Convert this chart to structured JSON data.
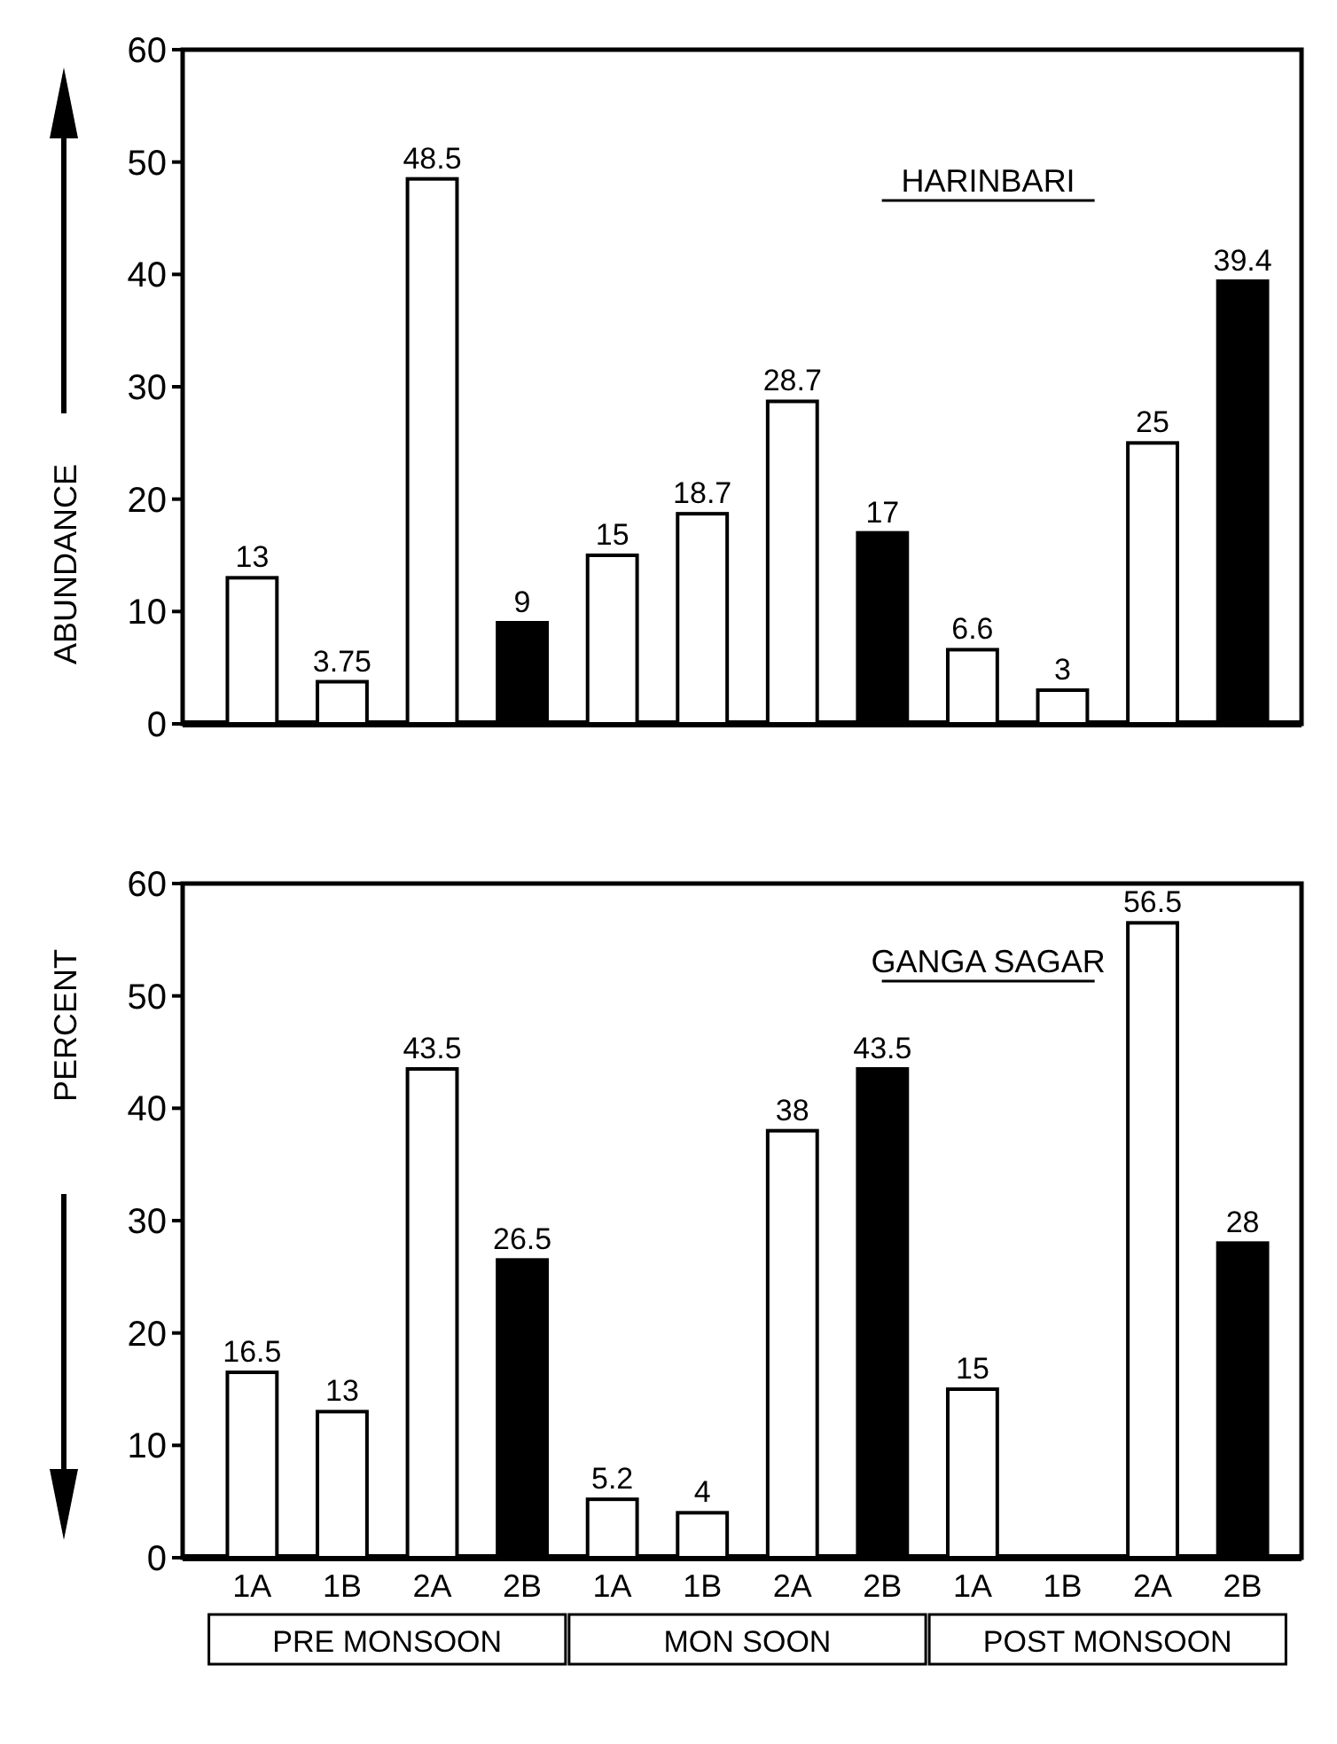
{
  "chart_data": [
    {
      "type": "bar",
      "title": "HARINBARI",
      "ylabel": "ABUNDANCE",
      "categories": [
        null,
        null,
        null,
        null,
        null,
        null,
        null,
        null,
        null,
        null,
        null,
        null
      ],
      "values": [
        13,
        3.75,
        48.5,
        9,
        15,
        18.7,
        28.7,
        17,
        6.6,
        3,
        25,
        39.4
      ],
      "value_labels": [
        "13",
        "3.75",
        "48.5",
        "9",
        "15",
        "18.7",
        "28.7",
        "17",
        "6.6",
        "3",
        "25",
        "39.4"
      ],
      "colors": [
        "#ffffff",
        "#ffffff",
        "#ffffff",
        "#000000",
        "#ffffff",
        "#ffffff",
        "#ffffff",
        "#000000",
        "#ffffff",
        "#ffffff",
        "#ffffff",
        "#000000"
      ],
      "ylim": [
        0,
        60
      ],
      "yticks": [
        0,
        10,
        20,
        30,
        40,
        50,
        60
      ]
    },
    {
      "type": "bar",
      "title": "GANGA SAGAR",
      "ylabel": "PERCENT",
      "categories": [
        "1A",
        "1B",
        "2A",
        "2B",
        "1A",
        "1B",
        "2A",
        "2B",
        "1A",
        "1B",
        "2A",
        "2B"
      ],
      "values": [
        16.5,
        13,
        43.5,
        26.5,
        5.2,
        4,
        38,
        43.5,
        15,
        0,
        56.5,
        28
      ],
      "value_labels": [
        "16.5",
        "13",
        "43.5",
        "26.5",
        "5.2",
        "4",
        "38",
        "43.5",
        "15",
        null,
        "56.5",
        "28"
      ],
      "colors": [
        "#ffffff",
        "#ffffff",
        "#ffffff",
        "#000000",
        "#ffffff",
        "#ffffff",
        "#ffffff",
        "#000000",
        "#ffffff",
        "#ffffff",
        "#ffffff",
        "#000000"
      ],
      "ylim": [
        0,
        60
      ],
      "yticks": [
        0,
        10,
        20,
        30,
        40,
        50,
        60
      ],
      "annotations": [
        "PRE MONSOON",
        "MON SOON",
        "POST MONSOON"
      ]
    }
  ]
}
